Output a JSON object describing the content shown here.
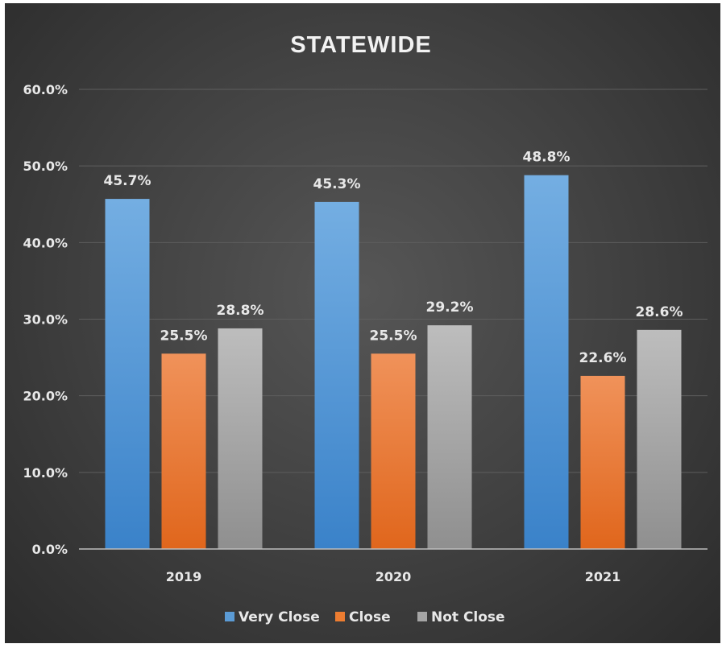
{
  "chart_data": {
    "type": "bar",
    "title": "STATEWIDE",
    "categories": [
      "2019",
      "2020",
      "2021"
    ],
    "series": [
      {
        "name": "Very Close",
        "values": [
          45.7,
          45.3,
          48.8
        ],
        "labels": [
          "45.7%",
          "45.3%",
          "48.8%"
        ],
        "color": "#5b9bd5"
      },
      {
        "name": "Close",
        "values": [
          25.5,
          25.5,
          22.6
        ],
        "labels": [
          "25.5%",
          "25.5%",
          "22.6%"
        ],
        "color": "#ed7d31"
      },
      {
        "name": "Not Close",
        "values": [
          28.8,
          29.2,
          28.6
        ],
        "labels": [
          "28.8%",
          "29.2%",
          "28.6%"
        ],
        "color": "#a5a5a5"
      }
    ],
    "ylim": [
      0,
      60
    ],
    "yticks": [
      "0.0%",
      "10.0%",
      "20.0%",
      "30.0%",
      "40.0%",
      "50.0%",
      "60.0%"
    ],
    "grid": true,
    "legend_position": "bottom"
  }
}
